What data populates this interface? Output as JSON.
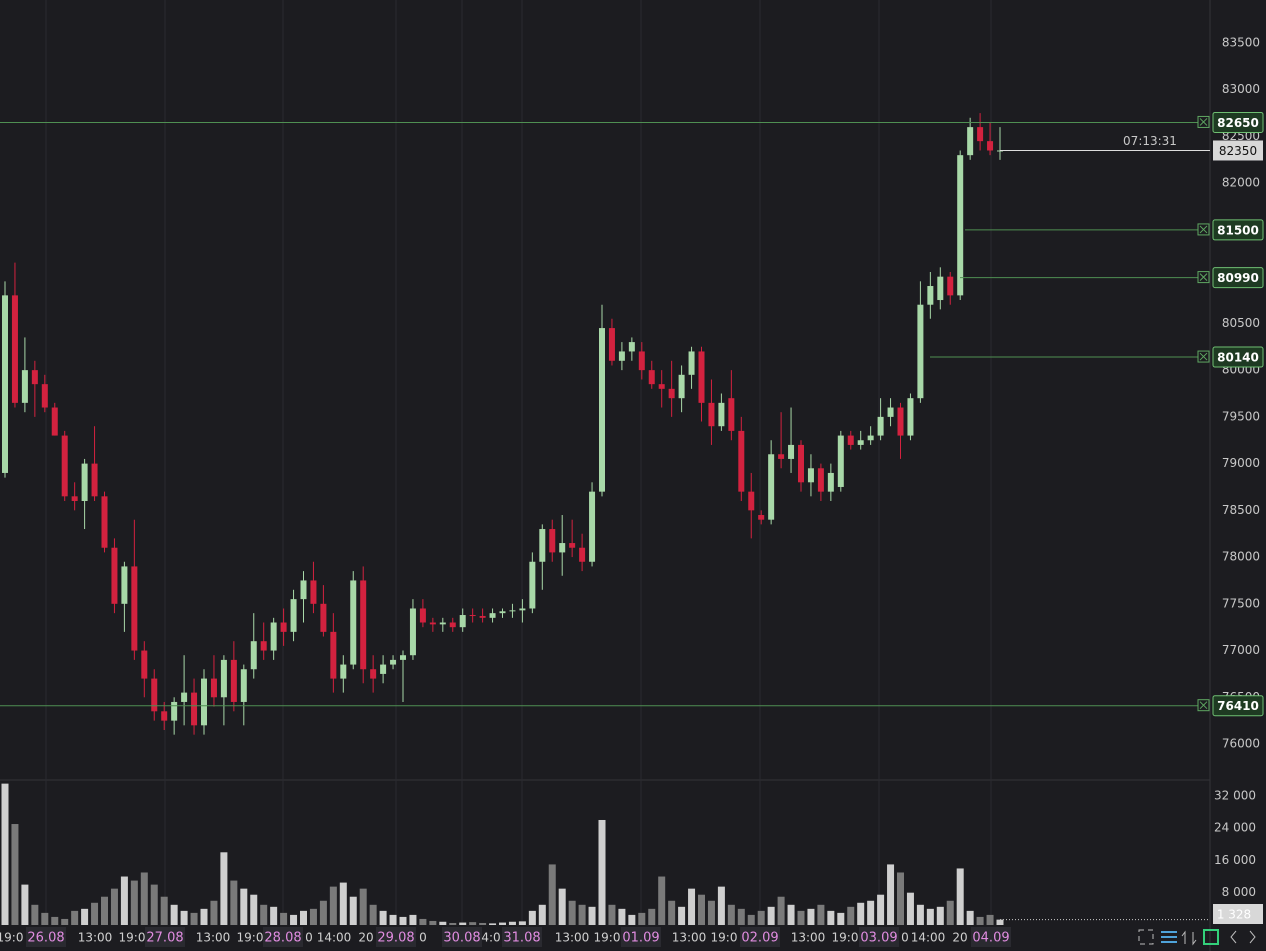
{
  "chart_data": {
    "type": "candlestick",
    "ylim": [
      75615,
      83960
    ],
    "yticks": [
      76000,
      76500,
      77000,
      77500,
      78000,
      78500,
      79000,
      79500,
      80000,
      80500,
      81000,
      81500,
      82000,
      82500,
      83000,
      83500
    ],
    "y2lim": [
      0,
      35900
    ],
    "y2ticks": [
      {
        "value": 8000,
        "label": "8 000"
      },
      {
        "value": 16000,
        "label": "16 000"
      },
      {
        "value": 24000,
        "label": "24 000"
      },
      {
        "value": 32000,
        "label": "32 000"
      }
    ],
    "up_color": "#a8d8a8",
    "down_color": "#d3223f",
    "volume_up_color": "#cfcfcf",
    "volume_down_color": "#7a7a7a",
    "levels": [
      82650,
      81500,
      80990,
      80140,
      76410
    ],
    "last_price": 82350,
    "countdown": "07:13:31",
    "last_volume": {
      "value": 1328,
      "label": "1 328"
    },
    "x_labels": [
      "19:0",
      "26.08",
      "13:00",
      "19:0",
      "27.08",
      "13:00",
      "19:0",
      "28.08",
      "0",
      "14:00",
      "20",
      "29.08",
      "0",
      "30.08",
      "4:0",
      "31.08",
      "13:00",
      "19:0",
      "01.09",
      "13:00",
      "19:0",
      "02.09",
      "13:00",
      "19:0",
      "03.09",
      "0",
      "14:00",
      "20",
      "04.09"
    ],
    "candles": [
      [
        78900,
        80950,
        78850,
        80800
      ],
      [
        80800,
        81150,
        79600,
        79650
      ],
      [
        79650,
        80350,
        79550,
        80000
      ],
      [
        80000,
        80100,
        79500,
        79850
      ],
      [
        79850,
        79950,
        79550,
        79600
      ],
      [
        79600,
        79650,
        79300,
        79300
      ],
      [
        79300,
        79350,
        78600,
        78650
      ],
      [
        78650,
        78800,
        78500,
        78600
      ],
      [
        78600,
        79050,
        78300,
        79000
      ],
      [
        79000,
        79400,
        78600,
        78650
      ],
      [
        78650,
        78700,
        78050,
        78100
      ],
      [
        78100,
        78200,
        77400,
        77500
      ],
      [
        77500,
        77950,
        77200,
        77900
      ],
      [
        77900,
        78400,
        76900,
        77000
      ],
      [
        77000,
        77100,
        76500,
        76700
      ],
      [
        76700,
        76800,
        76250,
        76350
      ],
      [
        76350,
        76450,
        76150,
        76250
      ],
      [
        76250,
        76500,
        76100,
        76450
      ],
      [
        76450,
        76950,
        76200,
        76550
      ],
      [
        76550,
        76700,
        76100,
        76200
      ],
      [
        76200,
        76800,
        76100,
        76700
      ],
      [
        76700,
        76950,
        76400,
        76500
      ],
      [
        76500,
        76950,
        76200,
        76900
      ],
      [
        76900,
        77100,
        76350,
        76450
      ],
      [
        76450,
        76850,
        76200,
        76800
      ],
      [
        76800,
        77400,
        76700,
        77100
      ],
      [
        77100,
        77300,
        76900,
        77000
      ],
      [
        77000,
        77350,
        76900,
        77300
      ],
      [
        77300,
        77450,
        77050,
        77200
      ],
      [
        77200,
        77650,
        77100,
        77550
      ],
      [
        77550,
        77850,
        77300,
        77750
      ],
      [
        77750,
        77950,
        77400,
        77500
      ],
      [
        77500,
        77700,
        77150,
        77200
      ],
      [
        77200,
        77400,
        76550,
        76700
      ],
      [
        76700,
        76950,
        76550,
        76850
      ],
      [
        76850,
        77850,
        76800,
        77750
      ],
      [
        77750,
        77900,
        76650,
        76800
      ],
      [
        76800,
        76950,
        76550,
        76700
      ],
      [
        76750,
        76950,
        76650,
        76850
      ],
      [
        76850,
        76950,
        76800,
        76900
      ],
      [
        76900,
        77000,
        76450,
        76950
      ],
      [
        76950,
        77550,
        76900,
        77450
      ],
      [
        77450,
        77550,
        77250,
        77300
      ],
      [
        77300,
        77350,
        77200,
        77280
      ],
      [
        77280,
        77350,
        77200,
        77300
      ],
      [
        77300,
        77350,
        77200,
        77250
      ],
      [
        77250,
        77450,
        77200,
        77380
      ],
      [
        77380,
        77450,
        77300,
        77370
      ],
      [
        77370,
        77450,
        77300,
        77350
      ],
      [
        77350,
        77450,
        77300,
        77400
      ],
      [
        77400,
        77450,
        77350,
        77420
      ],
      [
        77420,
        77500,
        77350,
        77430
      ],
      [
        77430,
        77550,
        77300,
        77450
      ],
      [
        77450,
        78050,
        77400,
        77950
      ],
      [
        77950,
        78350,
        77650,
        78300
      ],
      [
        78300,
        78400,
        77950,
        78050
      ],
      [
        78050,
        78450,
        77800,
        78150
      ],
      [
        78150,
        78400,
        78000,
        78100
      ],
      [
        78100,
        78250,
        77850,
        77950
      ],
      [
        77950,
        78800,
        77900,
        78700
      ],
      [
        78700,
        80700,
        78650,
        80450
      ],
      [
        80450,
        80550,
        80050,
        80100
      ],
      [
        80100,
        80300,
        80000,
        80200
      ],
      [
        80200,
        80350,
        80100,
        80300
      ],
      [
        80200,
        80300,
        79900,
        80000
      ],
      [
        80000,
        80100,
        79800,
        79850
      ],
      [
        79850,
        80000,
        79600,
        79800
      ],
      [
        79800,
        80100,
        79500,
        79700
      ],
      [
        79700,
        80050,
        79550,
        79950
      ],
      [
        79950,
        80250,
        79800,
        80200
      ],
      [
        80200,
        80250,
        79450,
        79650
      ],
      [
        79650,
        79900,
        79200,
        79400
      ],
      [
        79400,
        79750,
        79350,
        79650
      ],
      [
        79700,
        80000,
        79250,
        79350
      ],
      [
        79350,
        79500,
        78600,
        78700
      ],
      [
        78700,
        78900,
        78200,
        78500
      ],
      [
        78450,
        78500,
        78350,
        78400
      ],
      [
        78400,
        79250,
        78350,
        79100
      ],
      [
        79100,
        79550,
        78950,
        79050
      ],
      [
        79050,
        79600,
        78900,
        79200
      ],
      [
        79200,
        79250,
        78700,
        78800
      ],
      [
        78800,
        79100,
        78650,
        78950
      ],
      [
        78950,
        79000,
        78600,
        78700
      ],
      [
        78700,
        79000,
        78600,
        78900
      ],
      [
        78750,
        79350,
        78700,
        79300
      ],
      [
        79300,
        79350,
        79150,
        79200
      ],
      [
        79200,
        79350,
        79150,
        79250
      ],
      [
        79250,
        79400,
        79200,
        79300
      ],
      [
        79300,
        79700,
        79250,
        79500
      ],
      [
        79500,
        79700,
        79400,
        79600
      ],
      [
        79600,
        79650,
        79050,
        79300
      ],
      [
        79300,
        79750,
        79250,
        79700
      ],
      [
        79700,
        80950,
        79650,
        80700
      ],
      [
        80700,
        81050,
        80550,
        80900
      ],
      [
        80750,
        81100,
        80650,
        81000
      ],
      [
        81000,
        81050,
        80700,
        80800
      ],
      [
        80800,
        82350,
        80750,
        82300
      ],
      [
        82300,
        82700,
        82250,
        82600
      ],
      [
        82600,
        82750,
        82350,
        82450
      ],
      [
        82450,
        82650,
        82300,
        82350
      ],
      [
        82350,
        82600,
        82250,
        82350
      ]
    ],
    "volume": [
      35000,
      25000,
      10000,
      5000,
      3000,
      2000,
      1500,
      3500,
      4000,
      5500,
      7000,
      9000,
      12000,
      11000,
      13000,
      10000,
      7000,
      5000,
      3500,
      3000,
      4000,
      6000,
      18000,
      11000,
      9000,
      7500,
      5000,
      4500,
      3000,
      2500,
      3500,
      4000,
      6000,
      9500,
      10500,
      7000,
      9000,
      5000,
      3500,
      2500,
      2000,
      2500,
      1500,
      1000,
      800,
      500,
      600,
      700,
      500,
      400,
      600,
      800,
      900,
      3500,
      5000,
      15000,
      9000,
      6000,
      5000,
      4500,
      26000,
      5000,
      4000,
      2500,
      3000,
      4000,
      12000,
      6000,
      4500,
      9000,
      7500,
      6000,
      9500,
      5000,
      4000,
      2500,
      3500,
      4500,
      7000,
      5000,
      3500,
      4000,
      5000,
      3500,
      3000,
      4500,
      5500,
      6000,
      7500,
      15000,
      13000,
      8000,
      5000,
      4000,
      4500,
      6000,
      14000,
      3500,
      2000,
      2500,
      1328
    ]
  }
}
